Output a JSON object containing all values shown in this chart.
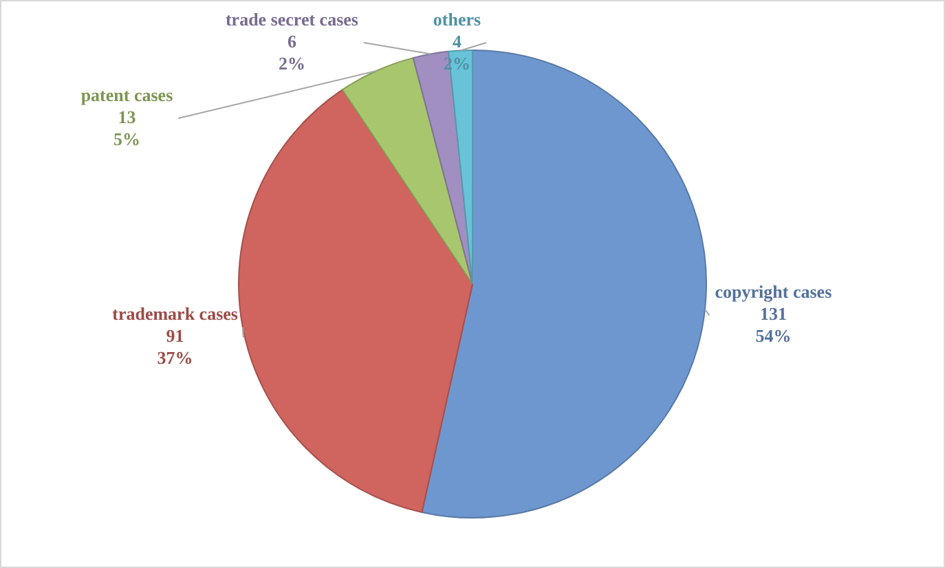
{
  "chart_data": {
    "type": "pie",
    "categories": [
      "copyright cases",
      "trademark cases",
      "patent cases",
      "trade secret cases",
      "others"
    ],
    "values": [
      131,
      91,
      13,
      6,
      4
    ],
    "colors": [
      "#6f97cf",
      "#d0645f",
      "#a8c66e",
      "#a08fc0",
      "#68c3d8"
    ],
    "value_labels": [
      "131\n54%",
      "91\n37%",
      "13\n5%",
      "6\n2%",
      "4\n2%"
    ],
    "legend": false
  }
}
